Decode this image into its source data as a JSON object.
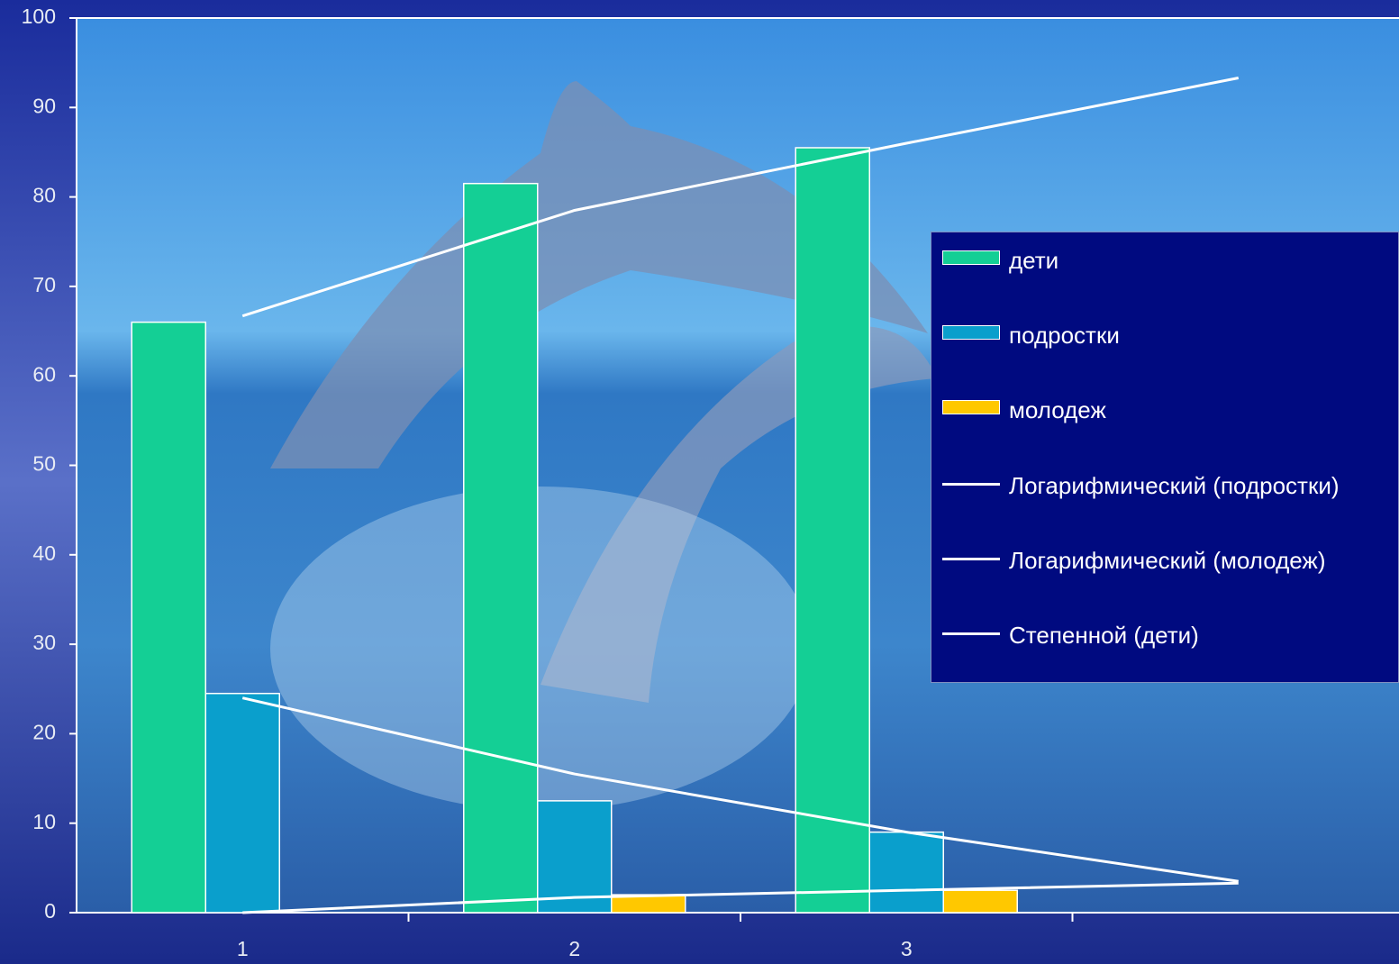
{
  "chart_data": {
    "type": "bar",
    "categories": [
      "1",
      "2",
      "3",
      null
    ],
    "series": [
      {
        "name": "дети",
        "color": "#14cf95",
        "values": [
          66,
          81.5,
          85.5,
          null
        ]
      },
      {
        "name": "подростки",
        "color": "#0a9fcc",
        "values": [
          24.5,
          12.5,
          9,
          null
        ]
      },
      {
        "name": "молодеж",
        "color": "#ffc800",
        "values": [
          0,
          2,
          2.5,
          null
        ]
      },
      {
        "name": "Логарифмический (подростки)",
        "type": "line",
        "color": "#ffffff",
        "values": [
          24,
          15.5,
          9,
          3.5
        ]
      },
      {
        "name": "Логарифмический (молодеж)",
        "type": "line",
        "color": "#ffffff",
        "values": [
          0,
          1.7,
          2.5,
          3.3
        ]
      },
      {
        "name": "Степенной (дети)",
        "type": "line",
        "color": "#ffffff",
        "values": [
          66.7,
          78.5,
          86,
          93.3
        ]
      }
    ],
    "ylim": [
      0,
      100
    ],
    "yticks": [
      0,
      10,
      20,
      30,
      40,
      50,
      60,
      70,
      80,
      90,
      100
    ],
    "legend": "right"
  }
}
